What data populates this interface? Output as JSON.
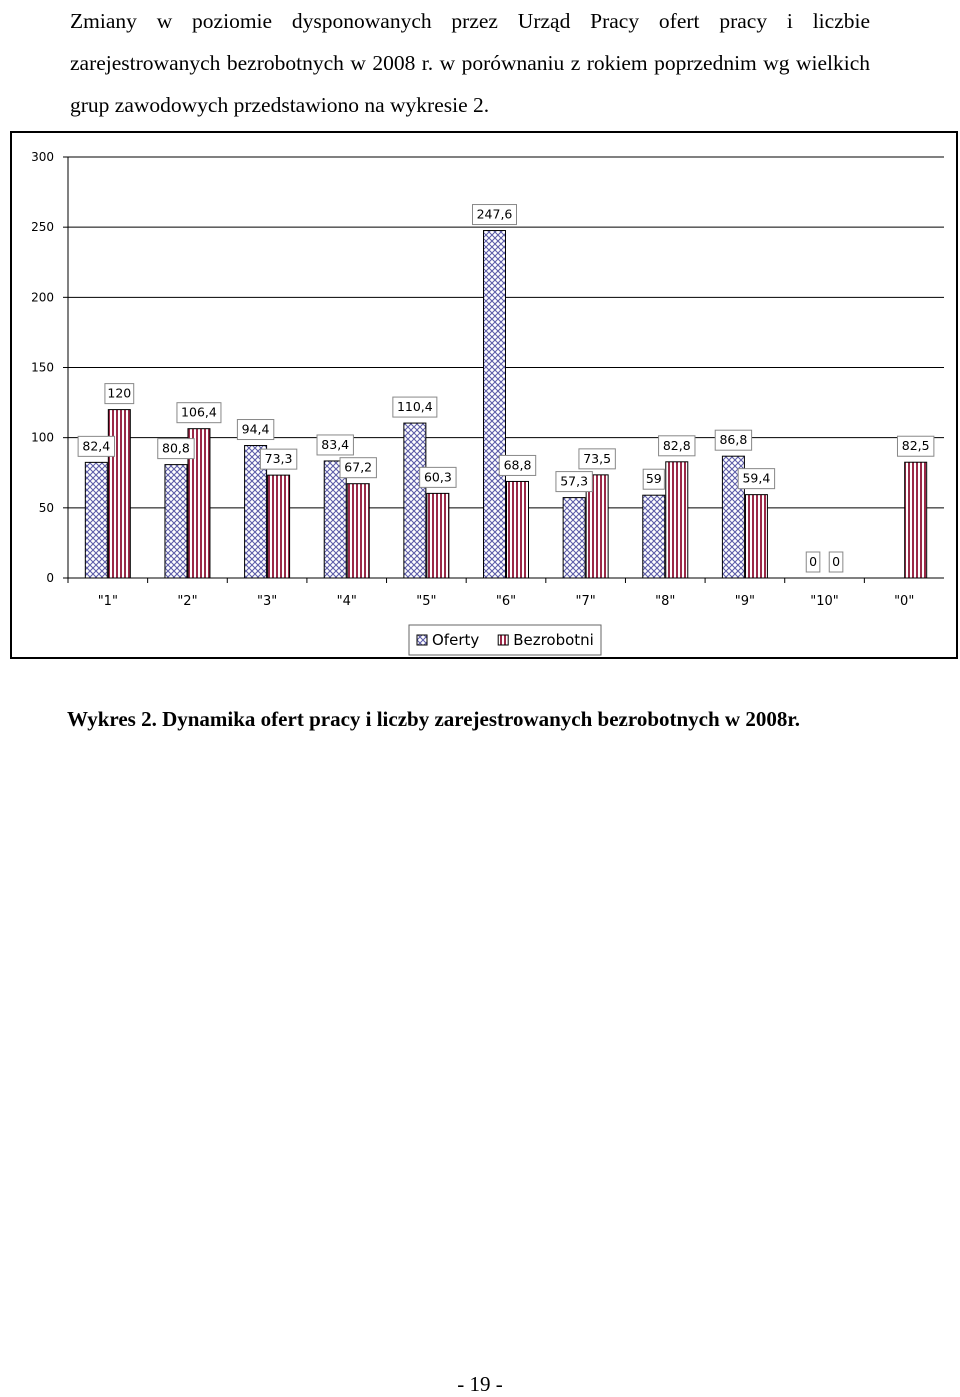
{
  "intro_text": "Zmiany w poziomie dysponowanych przez Urząd Pracy ofert pracy i liczbie zarejestrowanych bezrobotnych w 2008 r. w porównaniu z rokiem poprzednim wg wielkich grup zawodowych przedstawiono na wykresie 2.",
  "caption": "Wykres 2. Dynamika ofert pracy i liczby zarejestrowanych bezrobotnych w 2008r.",
  "page_number": "- 19 -",
  "chart_data": {
    "type": "bar",
    "categories": [
      "\"1\"",
      "\"2\"",
      "\"3\"",
      "\"4\"",
      "\"5\"",
      "\"6\"",
      "\"7\"",
      "\"8\"",
      "\"9\"",
      "\"10\"",
      "\"0\""
    ],
    "series": [
      {
        "name": "Oferty",
        "values": [
          82.4,
          80.8,
          94.4,
          83.4,
          110.4,
          247.6,
          57.3,
          59,
          86.8,
          0,
          null
        ],
        "labels": [
          "82,4",
          "80,8",
          "94,4",
          "83,4",
          "110,4",
          "247,6",
          "57,3",
          "59",
          "86,8",
          "0",
          ""
        ],
        "color": "#7a7ac0"
      },
      {
        "name": "Bezrobotni",
        "values": [
          120,
          106.4,
          73.3,
          67.2,
          60.3,
          68.8,
          73.5,
          82.8,
          59.4,
          0,
          82.5
        ],
        "labels": [
          "120",
          "106,4",
          "73,3",
          "67,2",
          "60,3",
          "68,8",
          "73,5",
          "82,8",
          "59,4",
          "0",
          "82,5"
        ],
        "color": "#a83050"
      }
    ],
    "y_ticks": [
      "0",
      "50",
      "100",
      "150",
      "200",
      "250",
      "300"
    ],
    "ylim": [
      0,
      300
    ],
    "grid": "horizontal",
    "legend_position": "bottom"
  }
}
